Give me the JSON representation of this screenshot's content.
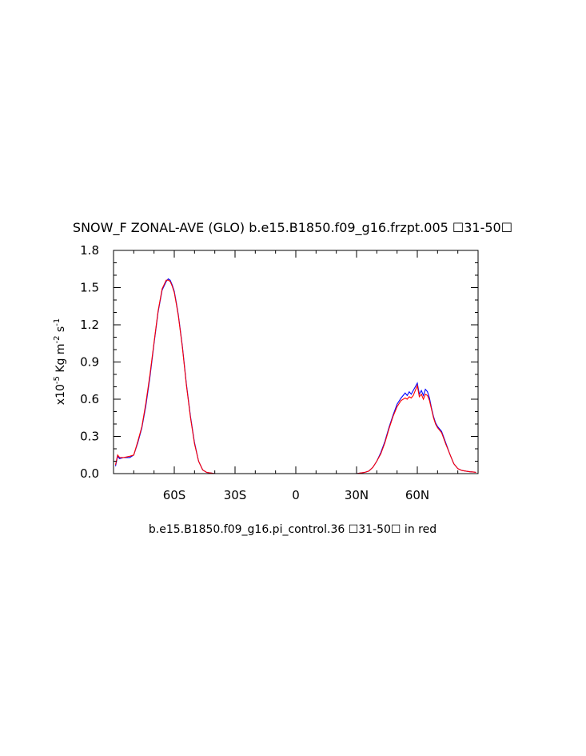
{
  "chart_data": {
    "type": "line",
    "title": "SNOW_F ZONAL-AVE (GLO) b.e15.B1850.f09_g16.frzpt.005 ☐31-50☐",
    "ylabel_prefix": "x10",
    "ylabel_exp": "-5",
    "ylabel_units": " Kg m",
    "ylabel_exp2": "-2",
    "ylabel_s": " s",
    "ylabel_exp3": "-1",
    "xlabel": "b.e15.B1850.f09_g16.pi_control.36 ☐31-50☐ in red",
    "xlim": [
      -90,
      90
    ],
    "ylim": [
      0.0,
      1.8
    ],
    "x_ticks": [
      -60,
      -30,
      0,
      30,
      60
    ],
    "x_tick_labels": [
      "60S",
      "30S",
      "0",
      "30N",
      "60N"
    ],
    "y_ticks": [
      0.0,
      0.3,
      0.6,
      0.9,
      1.2,
      1.5,
      1.8
    ],
    "y_tick_labels": [
      "0.0",
      "0.3",
      "0.6",
      "0.9",
      "1.2",
      "1.5",
      "1.8"
    ],
    "series": [
      {
        "color": "#0000ff",
        "x": [
          -89,
          -88,
          -87,
          -85,
          -82,
          -80,
          -78,
          -76,
          -74,
          -72,
          -70,
          -68,
          -66,
          -64,
          -63,
          -62,
          -61,
          -60,
          -59,
          -58,
          -56,
          -54,
          -52,
          -50,
          -48,
          -46,
          -44,
          -42,
          -40,
          -38,
          -35,
          -30,
          -20,
          -10,
          0,
          10,
          20,
          25,
          30,
          32,
          34,
          36,
          38,
          40,
          42,
          44,
          46,
          48,
          50,
          52,
          54,
          55,
          56,
          57,
          58,
          59,
          60,
          61,
          62,
          63,
          64,
          65,
          66,
          67,
          68,
          69,
          70,
          72,
          74,
          76,
          78,
          80,
          82,
          84,
          86,
          88,
          89
        ],
        "y": [
          0.06,
          0.14,
          0.12,
          0.13,
          0.13,
          0.15,
          0.25,
          0.37,
          0.55,
          0.78,
          1.05,
          1.3,
          1.48,
          1.55,
          1.57,
          1.56,
          1.52,
          1.47,
          1.38,
          1.28,
          1.03,
          0.72,
          0.46,
          0.25,
          0.1,
          0.03,
          0.01,
          0.005,
          0.0,
          0.0,
          0.0,
          0.0,
          0.0,
          0.0,
          0.0,
          0.0,
          0.0,
          0.0,
          0.0,
          0.005,
          0.01,
          0.02,
          0.05,
          0.1,
          0.17,
          0.26,
          0.37,
          0.47,
          0.56,
          0.61,
          0.65,
          0.63,
          0.66,
          0.64,
          0.67,
          0.7,
          0.73,
          0.64,
          0.67,
          0.63,
          0.68,
          0.66,
          0.61,
          0.53,
          0.46,
          0.41,
          0.38,
          0.34,
          0.25,
          0.16,
          0.08,
          0.04,
          0.025,
          0.02,
          0.015,
          0.012,
          0.01
        ]
      },
      {
        "color": "#ff0000",
        "x": [
          -89,
          -88,
          -87,
          -85,
          -82,
          -80,
          -78,
          -76,
          -74,
          -72,
          -70,
          -68,
          -66,
          -64,
          -63,
          -62,
          -61,
          -60,
          -59,
          -58,
          -56,
          -54,
          -52,
          -50,
          -48,
          -46,
          -44,
          -42,
          -40,
          -38,
          -35,
          -30,
          -20,
          -10,
          0,
          10,
          20,
          25,
          30,
          32,
          34,
          36,
          38,
          40,
          42,
          44,
          46,
          48,
          50,
          52,
          54,
          55,
          56,
          57,
          58,
          59,
          60,
          61,
          62,
          63,
          64,
          65,
          66,
          67,
          68,
          69,
          70,
          72,
          74,
          76,
          78,
          80,
          82,
          84,
          86,
          88,
          89
        ],
        "y": [
          0.07,
          0.15,
          0.13,
          0.13,
          0.14,
          0.15,
          0.26,
          0.38,
          0.57,
          0.8,
          1.06,
          1.31,
          1.49,
          1.56,
          1.56,
          1.55,
          1.51,
          1.46,
          1.37,
          1.27,
          1.02,
          0.71,
          0.45,
          0.24,
          0.1,
          0.03,
          0.01,
          0.005,
          0.0,
          0.0,
          0.0,
          0.0,
          0.0,
          0.0,
          0.0,
          0.0,
          0.0,
          0.0,
          0.0,
          0.005,
          0.01,
          0.02,
          0.05,
          0.1,
          0.16,
          0.25,
          0.36,
          0.46,
          0.54,
          0.59,
          0.61,
          0.6,
          0.62,
          0.61,
          0.63,
          0.67,
          0.71,
          0.62,
          0.64,
          0.6,
          0.64,
          0.63,
          0.59,
          0.52,
          0.45,
          0.4,
          0.37,
          0.33,
          0.24,
          0.16,
          0.08,
          0.04,
          0.025,
          0.02,
          0.015,
          0.012,
          0.01
        ]
      }
    ]
  }
}
